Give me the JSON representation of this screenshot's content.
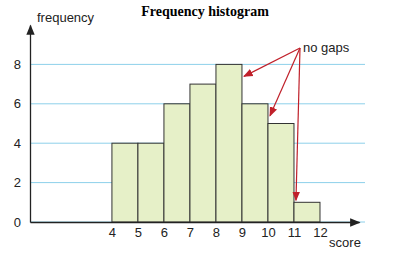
{
  "chart_data": {
    "type": "histogram",
    "title": "Frequency histogram",
    "y_label": "frequency",
    "x_label": "score",
    "bins": [
      4,
      5,
      6,
      7,
      8,
      9,
      10,
      11,
      12
    ],
    "values": [
      4,
      4,
      6,
      7,
      8,
      6,
      5,
      1
    ],
    "color": "#e6f0c8",
    "xlim": [
      0.85,
      13.5
    ],
    "xticks": [
      4,
      5,
      6,
      7,
      8,
      9,
      10,
      11,
      12
    ],
    "ylim": [
      0,
      10
    ],
    "yticks": [
      0,
      2,
      4,
      6,
      8
    ],
    "grid": true,
    "annotation": "no gaps"
  }
}
